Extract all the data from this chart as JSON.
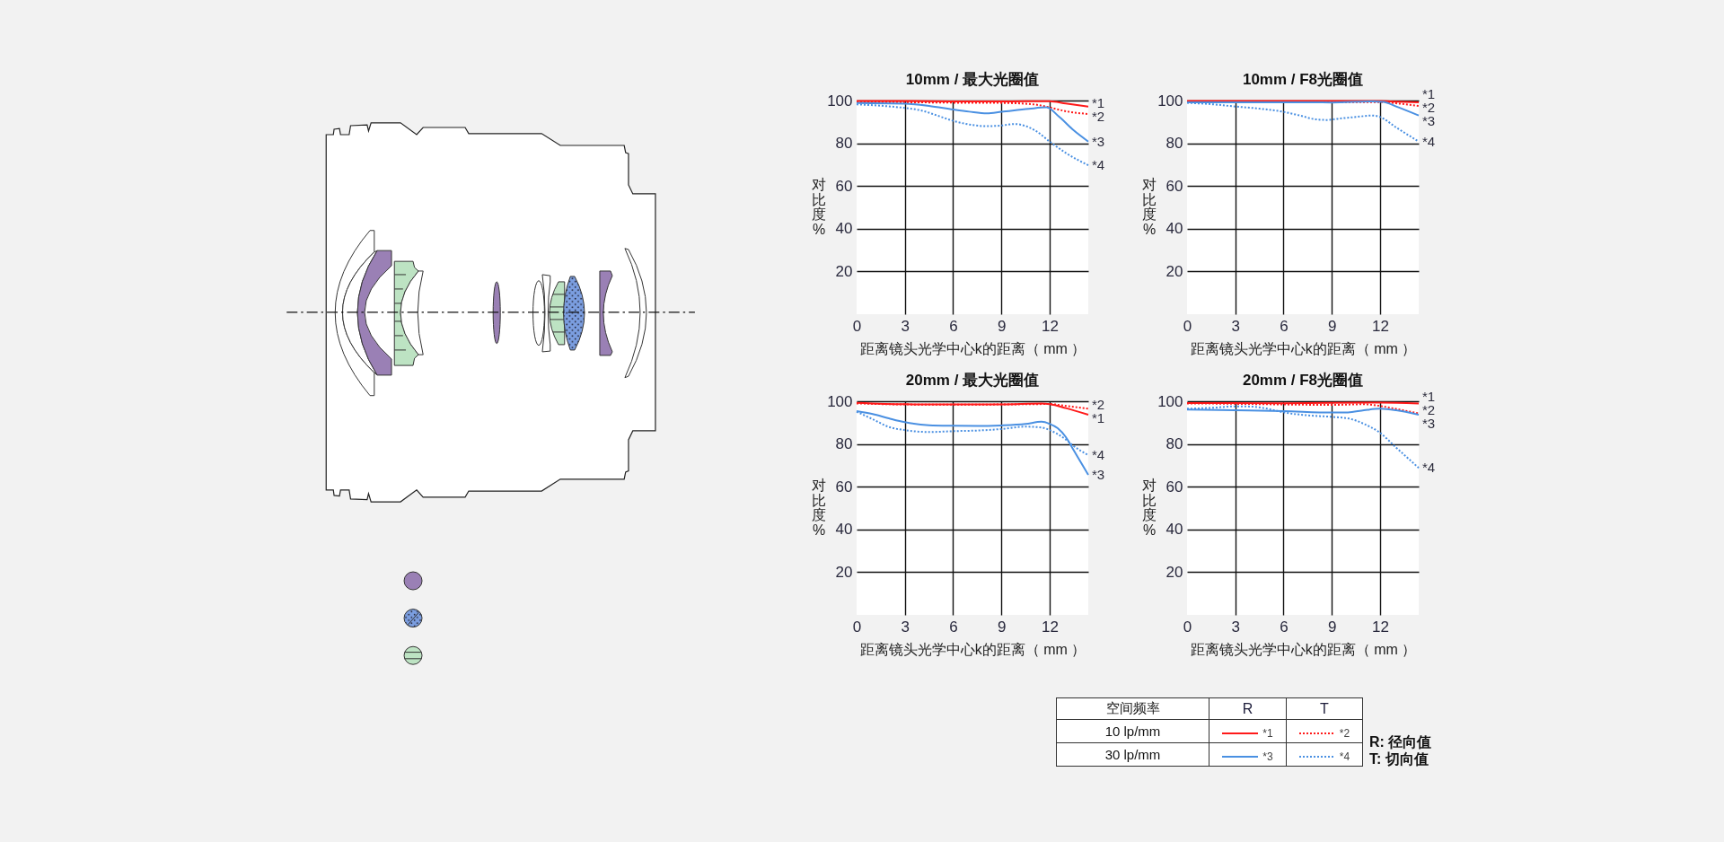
{
  "chart_data": [
    {
      "type": "line",
      "title": "10mm / 最大光圈值",
      "xlabel": "距离镜头光学中心k的距离（ mm ）",
      "ylabel": "对比度%",
      "xlim": [
        0,
        14.4
      ],
      "xticks": [
        0,
        3,
        6,
        9,
        12
      ],
      "ylim": [
        0,
        100
      ],
      "yticks": [
        20,
        40,
        60,
        80,
        100
      ],
      "grid": true,
      "series": [
        {
          "name": "*1",
          "color": "#ff1a1a",
          "line_style": "solid",
          "x": [
            0,
            3,
            6,
            9,
            12,
            13,
            14.4
          ],
          "values": [
            99.8,
            99.8,
            99.6,
            99.6,
            99.7,
            98.6,
            97.2
          ]
        },
        {
          "name": "*2",
          "color": "#ff1a1a",
          "line_style": "dotted",
          "x": [
            0,
            3,
            6,
            9,
            11,
            12,
            13,
            14.4
          ],
          "values": [
            99.3,
            99.2,
            99,
            98.9,
            98.2,
            96.8,
            95,
            93.7
          ]
        },
        {
          "name": "*3",
          "color": "#4a90e2",
          "line_style": "solid",
          "x": [
            0,
            3,
            4.5,
            6,
            7,
            8.1,
            9,
            10.7,
            11.8,
            12.6,
            13.5,
            14.4
          ],
          "values": [
            98.8,
            98.5,
            97.5,
            95.8,
            94.8,
            94,
            94.7,
            96.1,
            96.8,
            92.3,
            86,
            80.8
          ]
        },
        {
          "name": "*4",
          "color": "#4a90e2",
          "line_style": "dotted",
          "x": [
            0,
            3,
            4,
            5,
            6,
            7,
            8,
            9,
            9.8,
            11.1,
            12,
            13,
            14.4
          ],
          "values": [
            98.2,
            96.5,
            95.4,
            93,
            90.5,
            88.8,
            88,
            88.3,
            89,
            86,
            80.8,
            75.5,
            69.7
          ]
        }
      ]
    },
    {
      "type": "line",
      "title": "10mm / F8光圈值",
      "xlabel": "距离镜头光学中心k的距离（ mm ）",
      "ylabel": "对比度%",
      "xlim": [
        0,
        14.4
      ],
      "xticks": [
        0,
        3,
        6,
        9,
        12
      ],
      "ylim": [
        0,
        100
      ],
      "yticks": [
        20,
        40,
        60,
        80,
        100
      ],
      "grid": true,
      "series": [
        {
          "name": "*1",
          "color": "#ff1a1a",
          "line_style": "solid",
          "x": [
            0,
            6,
            12,
            13,
            14.4
          ],
          "values": [
            99.8,
            99.8,
            99.8,
            99.5,
            99.2
          ]
        },
        {
          "name": "*2",
          "color": "#ff1a1a",
          "line_style": "dotted",
          "x": [
            0,
            6,
            12,
            13,
            14.4
          ],
          "values": [
            99.4,
            99.2,
            99.3,
            98.7,
            97.5
          ]
        },
        {
          "name": "*3",
          "color": "#4a90e2",
          "line_style": "solid",
          "x": [
            0,
            3,
            6,
            9,
            11.5,
            12.2,
            13,
            14.4
          ],
          "values": [
            99.2,
            99.2,
            99.2,
            99.1,
            99.6,
            99.4,
            97.2,
            93
          ]
        },
        {
          "name": "*4",
          "color": "#4a90e2",
          "line_style": "dotted",
          "x": [
            0,
            1.5,
            3,
            4.5,
            6,
            7,
            8,
            8.7,
            9.5,
            10.5,
            11.5,
            12,
            13,
            14.4
          ],
          "values": [
            98.9,
            98.3,
            97.2,
            96.2,
            94.7,
            93,
            91.2,
            90.9,
            91.6,
            92.3,
            93,
            92.3,
            87.4,
            80.8
          ]
        }
      ]
    },
    {
      "type": "line",
      "title": "20mm / 最大光圈值",
      "xlabel": "距离镜头光学中心k的距离（ mm ）",
      "ylabel": "对比度%",
      "xlim": [
        0,
        14.4
      ],
      "xticks": [
        0,
        3,
        6,
        9,
        12
      ],
      "ylim": [
        0,
        100
      ],
      "yticks": [
        20,
        40,
        60,
        80,
        100
      ],
      "grid": true,
      "series": [
        {
          "name": "*1",
          "color": "#ff1a1a",
          "line_style": "solid",
          "x": [
            0,
            3,
            6,
            9,
            11.5,
            12,
            13,
            14.4
          ],
          "values": [
            99.3,
            98.6,
            98.5,
            98.5,
            98.9,
            98.6,
            96.8,
            93.7
          ]
        },
        {
          "name": "*2",
          "color": "#ff1a1a",
          "line_style": "dotted",
          "x": [
            0,
            3,
            6,
            9,
            12,
            13,
            14.4
          ],
          "values": [
            99,
            98.5,
            98.4,
            98.5,
            98.7,
            97.8,
            96.5
          ]
        },
        {
          "name": "*3",
          "color": "#4a90e2",
          "line_style": "solid",
          "x": [
            0,
            1,
            2,
            3,
            4.5,
            6,
            7.5,
            9,
            10.5,
            11.5,
            12,
            12.5,
            13,
            13.5,
            14.4
          ],
          "values": [
            95.4,
            94,
            92,
            90.2,
            88.8,
            88.5,
            88.4,
            88.7,
            89.4,
            90.4,
            89.4,
            87.4,
            83.3,
            77,
            65.5
          ]
        },
        {
          "name": "*4",
          "color": "#4a90e2",
          "line_style": "dotted",
          "x": [
            0,
            1,
            2,
            3,
            4.5,
            6,
            7.5,
            9,
            10.5,
            11.5,
            12,
            13,
            13.5,
            14.4
          ],
          "values": [
            95.1,
            91.6,
            88,
            86.5,
            85.6,
            86,
            86.3,
            87,
            88.1,
            87.7,
            86.5,
            82.1,
            79,
            74.8
          ]
        }
      ]
    },
    {
      "type": "line",
      "title": "20mm / F8光圈值",
      "xlabel": "距离镜头光学中心k的距离（ mm ）",
      "ylabel": "对比度%",
      "xlim": [
        0,
        14.4
      ],
      "xticks": [
        0,
        3,
        6,
        9,
        12
      ],
      "ylim": [
        0,
        100
      ],
      "yticks": [
        20,
        40,
        60,
        80,
        100
      ],
      "grid": true,
      "series": [
        {
          "name": "*1",
          "color": "#ff1a1a",
          "line_style": "solid",
          "x": [
            0,
            6,
            12,
            14.4
          ],
          "values": [
            99.2,
            99.1,
            99.4,
            99
          ]
        },
        {
          "name": "*2",
          "color": "#ff1a1a",
          "line_style": "dotted",
          "x": [
            0,
            3,
            6,
            9,
            11,
            12,
            13,
            14.4
          ],
          "values": [
            99,
            98.8,
            98.5,
            98.3,
            98.6,
            97.8,
            96.4,
            94.3
          ]
        },
        {
          "name": "*3",
          "color": "#4a90e2",
          "line_style": "solid",
          "x": [
            0,
            3,
            6,
            9,
            10,
            11,
            12,
            13,
            14.4
          ],
          "values": [
            96.1,
            95.8,
            95.4,
            94.7,
            94.8,
            95.8,
            96.5,
            95.8,
            93.7
          ]
        },
        {
          "name": "*4",
          "color": "#4a90e2",
          "line_style": "dotted",
          "x": [
            0,
            1.5,
            3,
            4,
            5,
            6,
            7.5,
            9,
            10,
            11,
            12,
            13,
            14.4
          ],
          "values": [
            96.5,
            96.9,
            97.6,
            97.5,
            96.5,
            94.8,
            93.4,
            92.7,
            92,
            89.4,
            85.2,
            78.3,
            68.8
          ]
        }
      ]
    },
    {
      "type": "other",
      "legend_title": "空间频率",
      "categories": [
        "R",
        "T"
      ],
      "y_categories": [
        "10 lp/mm",
        "30 lp/mm"
      ],
      "annotations": [
        "R: 径向值",
        "T: 切向值"
      ]
    }
  ]
}
